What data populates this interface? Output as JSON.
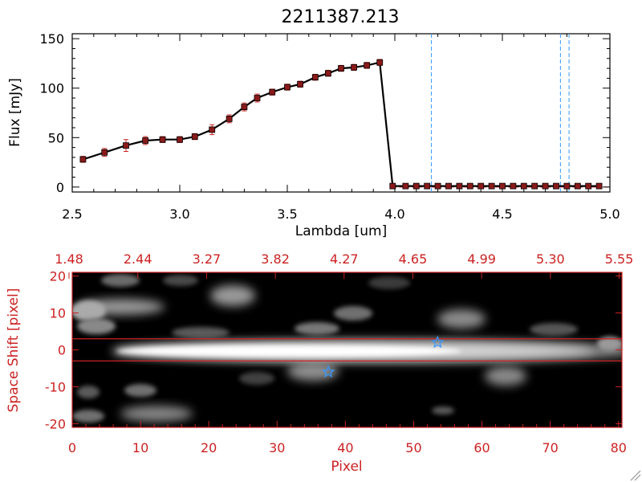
{
  "chart_data": [
    {
      "type": "line",
      "title": "2211387.213",
      "xlabel": "Lambda [um]",
      "ylabel": "Flux [mJy]",
      "xlim": [
        2.5,
        5.0
      ],
      "ylim": [
        -5,
        155
      ],
      "xticks": [
        "2.5",
        "3.0",
        "3.5",
        "4.0",
        "4.5",
        "5.0"
      ],
      "yticks": [
        "0",
        "50",
        "100",
        "150"
      ],
      "series": [
        {
          "color": "#000000",
          "marker_color": "#8b1a1a",
          "errorbar_color": "#cc2222",
          "x": [
            2.55,
            2.65,
            2.75,
            2.84,
            2.92,
            3.0,
            3.07,
            3.15,
            3.23,
            3.3,
            3.36,
            3.43,
            3.5,
            3.56,
            3.63,
            3.69,
            3.75,
            3.81,
            3.87,
            3.93,
            3.99,
            4.05,
            4.1,
            4.15,
            4.2,
            4.25,
            4.3,
            4.35,
            4.4,
            4.45,
            4.5,
            4.55,
            4.6,
            4.65,
            4.7,
            4.75,
            4.8,
            4.85,
            4.9,
            4.95
          ],
          "y": [
            28,
            35,
            42,
            47,
            48,
            48,
            51,
            58,
            69,
            81,
            90,
            96,
            101,
            104,
            111,
            115,
            120,
            121,
            123,
            126,
            1,
            1,
            1,
            1,
            1,
            1,
            1,
            1,
            1,
            1,
            1,
            1,
            1,
            1,
            1,
            1,
            1,
            1,
            1,
            1
          ],
          "yerr": [
            3,
            4,
            6,
            4,
            3,
            3,
            3,
            5,
            4,
            4,
            4,
            3,
            3,
            3,
            3,
            3,
            3,
            3,
            3,
            3,
            0,
            0,
            0,
            0,
            0,
            0,
            0,
            0,
            0,
            0,
            0,
            0,
            0,
            0,
            0,
            0,
            0,
            0,
            0,
            0
          ]
        }
      ],
      "vlines": {
        "color": "#3399ff",
        "x": [
          4.17,
          4.77,
          4.81
        ]
      },
      "hline": {
        "color": "#cc2222",
        "y": 0
      }
    },
    {
      "type": "heatmap",
      "xlabel": "Pixel",
      "ylabel": "Space Shift [pixel]",
      "xlim": [
        0,
        80.5
      ],
      "ylim": [
        -21,
        21
      ],
      "xticks": [
        "0",
        "10",
        "20",
        "30",
        "40",
        "50",
        "60",
        "70",
        "80"
      ],
      "yticks": [
        "-20",
        "-10",
        "0",
        "10",
        "20"
      ],
      "top_axis_ticks": [
        "1.48",
        "2.44",
        "3.27",
        "3.82",
        "4.27",
        "4.65",
        "4.99",
        "5.30",
        "5.55"
      ],
      "axis_color": "#cc2222",
      "hlines": {
        "color": "#cc2222",
        "y": [
          3,
          -3
        ]
      },
      "star_markers": {
        "color": "#3399ff",
        "points": [
          [
            37.5,
            -6
          ],
          [
            53.5,
            2
          ]
        ]
      },
      "trace": {
        "x_start": 5,
        "x_end": 80.5,
        "y": 0
      }
    }
  ]
}
